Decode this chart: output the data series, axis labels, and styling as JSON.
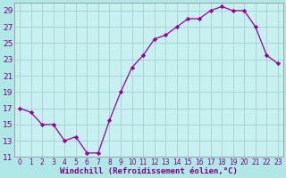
{
  "x": [
    0,
    1,
    2,
    3,
    4,
    5,
    6,
    7,
    8,
    9,
    10,
    11,
    12,
    13,
    14,
    15,
    16,
    17,
    18,
    19,
    20,
    21,
    22,
    23
  ],
  "y": [
    17,
    16.5,
    15,
    15,
    13,
    13.5,
    11.5,
    11.5,
    15.5,
    19,
    22,
    23.5,
    25.5,
    26,
    27,
    28,
    28,
    29,
    29.5,
    29,
    29,
    27,
    23.5,
    22.5
  ],
  "line_color": "#990099",
  "marker_color": "#990099",
  "bg_color": "#b0e8e8",
  "plot_bg_color": "#c8f0f0",
  "grid_color": "#99cccc",
  "xlabel": "Windchill (Refroidissement éolien,°C)",
  "xlabel_color": "#800080",
  "ylim": [
    11,
    30
  ],
  "xlim": [
    -0.5,
    23.5
  ],
  "yticks": [
    11,
    13,
    15,
    17,
    19,
    21,
    23,
    25,
    27,
    29
  ],
  "xticks": [
    0,
    1,
    2,
    3,
    4,
    5,
    6,
    7,
    8,
    9,
    10,
    11,
    12,
    13,
    14,
    15,
    16,
    17,
    18,
    19,
    20,
    21,
    22,
    23
  ],
  "tick_label_color": "#800080",
  "tick_label_size": 5.5,
  "xlabel_size": 6.5,
  "ytick_label_size": 6.5
}
